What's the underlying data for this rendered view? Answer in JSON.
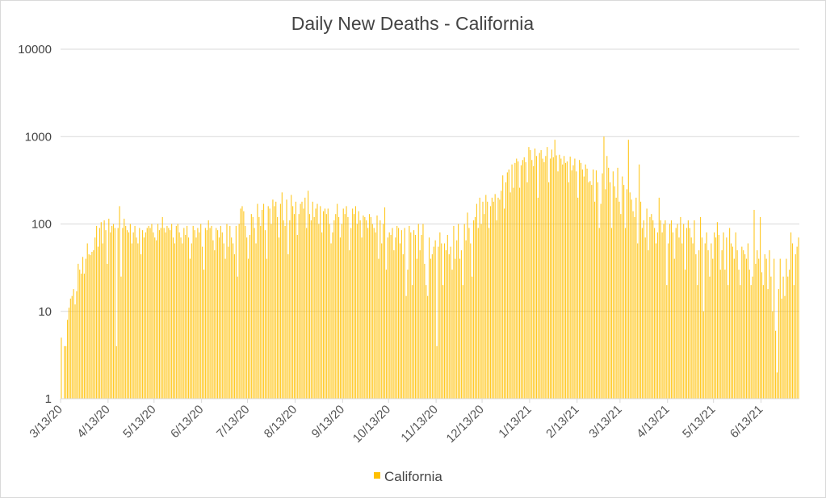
{
  "chart_data": {
    "type": "bar",
    "title": "Daily New Deaths - California",
    "xlabel": "",
    "ylabel": "",
    "yscale": "log",
    "ylim": [
      1,
      10000
    ],
    "yticks": [
      "1",
      "10",
      "100",
      "1000",
      "10000"
    ],
    "ytick_values": [
      1,
      10,
      100,
      1000,
      10000
    ],
    "start_date": "2020-03-13",
    "xticks": [
      "3/13/20",
      "4/13/20",
      "5/13/20",
      "6/13/20",
      "7/13/20",
      "8/13/20",
      "9/13/20",
      "10/13/20",
      "11/13/20",
      "12/13/20",
      "1/13/21",
      "2/13/21",
      "3/13/21",
      "4/13/21",
      "5/13/21",
      "6/13/21"
    ],
    "grid": true,
    "legend": "bottom-center",
    "series": [
      {
        "name": "California",
        "color": "#FFC000",
        "values": [
          5,
          1,
          4,
          4,
          8,
          11,
          14,
          15,
          18,
          12,
          17,
          35,
          30,
          27,
          42,
          27,
          40,
          60,
          45,
          44,
          48,
          50,
          70,
          95,
          55,
          90,
          105,
          60,
          110,
          85,
          35,
          115,
          80,
          95,
          100,
          90,
          4,
          90,
          160,
          25,
          90,
          115,
          95,
          85,
          80,
          100,
          60,
          80,
          95,
          70,
          60,
          90,
          45,
          85,
          70,
          80,
          90,
          95,
          90,
          100,
          80,
          70,
          65,
          100,
          85,
          90,
          120,
          90,
          80,
          95,
          90,
          85,
          100,
          70,
          60,
          95,
          100,
          80,
          70,
          60,
          90,
          75,
          95,
          70,
          40,
          60,
          95,
          85,
          70,
          90,
          80,
          100,
          55,
          30,
          90,
          85,
          110,
          90,
          95,
          65,
          50,
          90,
          85,
          70,
          95,
          80,
          60,
          40,
          100,
          55,
          95,
          70,
          60,
          45,
          95,
          25,
          100,
          150,
          160,
          140,
          95,
          70,
          40,
          75,
          130,
          120,
          90,
          60,
          170,
          120,
          95,
          145,
          170,
          85,
          40,
          160,
          150,
          100,
          190,
          160,
          180,
          120,
          70,
          170,
          230,
          110,
          95,
          190,
          45,
          110,
          215,
          160,
          130,
          180,
          75,
          130,
          170,
          180,
          150,
          200,
          90,
          240,
          130,
          110,
          180,
          120,
          150,
          170,
          100,
          160,
          80,
          140,
          150,
          130,
          150,
          100,
          60,
          80,
          110,
          130,
          170,
          120,
          70,
          100,
          150,
          130,
          160,
          120,
          50,
          90,
          150,
          130,
          160,
          100,
          140,
          110,
          70,
          125,
          120,
          110,
          90,
          130,
          120,
          100,
          90,
          80,
          125,
          40,
          110,
          60,
          100,
          155,
          30,
          70,
          80,
          75,
          90,
          50,
          70,
          95,
          90,
          60,
          85,
          45,
          90,
          15,
          30,
          95,
          80,
          20,
          85,
          75,
          40,
          100,
          50,
          75,
          100,
          35,
          20,
          15,
          70,
          40,
          45,
          55,
          65,
          4,
          55,
          80,
          60,
          20,
          60,
          50,
          75,
          45,
          55,
          30,
          95,
          40,
          65,
          100,
          40,
          50,
          20,
          100,
          65,
          135,
          90,
          60,
          25,
          110,
          120,
          170,
          90,
          200,
          100,
          180,
          130,
          215,
          180,
          90,
          160,
          200,
          180,
          220,
          110,
          200,
          190,
          240,
          360,
          150,
          300,
          390,
          420,
          230,
          480,
          260,
          500,
          560,
          520,
          260,
          470,
          540,
          580,
          510,
          300,
          760,
          700,
          540,
          460,
          730,
          600,
          200,
          650,
          700,
          560,
          510,
          600,
          760,
          300,
          560,
          710,
          580,
          920,
          610,
          400,
          620,
          560,
          480,
          600,
          500,
          520,
          300,
          590,
          410,
          470,
          560,
          400,
          200,
          540,
          500,
          420,
          350,
          480,
          430,
          300,
          310,
          280,
          420,
          180,
          410,
          300,
          90,
          170,
          380,
          1000,
          250,
          600,
          440,
          300,
          90,
          400,
          270,
          200,
          440,
          180,
          130,
          350,
          280,
          90,
          250,
          920,
          230,
          190,
          140,
          120,
          200,
          60,
          480,
          180,
          90,
          110,
          70,
          150,
          50,
          120,
          130,
          110,
          90,
          60,
          80,
          200,
          110,
          80,
          100,
          110,
          20,
          60,
          100,
          110,
          80,
          40,
          90,
          100,
          70,
          120,
          60,
          100,
          30,
          90,
          110,
          90,
          70,
          60,
          110,
          45,
          20,
          50,
          120,
          70,
          10,
          60,
          80,
          50,
          25,
          60,
          40,
          80,
          70,
          105,
          75,
          30,
          50,
          80,
          30,
          70,
          20,
          90,
          60,
          55,
          40,
          80,
          50,
          30,
          20,
          55,
          50,
          45,
          40,
          60,
          30,
          20,
          25,
          145,
          35,
          50,
          40,
          120,
          28,
          20,
          45,
          40,
          18,
          50,
          25,
          10,
          40,
          6,
          2,
          18,
          40,
          14,
          25,
          15,
          40,
          25,
          30,
          80,
          60,
          20,
          45,
          55,
          70
        ]
      }
    ]
  }
}
